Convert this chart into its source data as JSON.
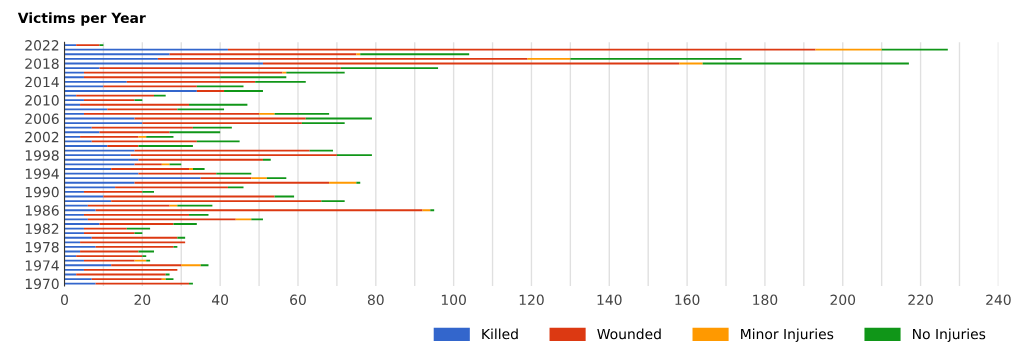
{
  "chart_data": {
    "type": "bar",
    "orientation": "horizontal",
    "stacked": true,
    "title": "Victims per Year",
    "categories": [
      "2022",
      null,
      null,
      null,
      "2018",
      null,
      null,
      null,
      "2014",
      null,
      null,
      null,
      "2010",
      null,
      null,
      null,
      "2006",
      null,
      null,
      null,
      "2002",
      null,
      null,
      null,
      "1998",
      null,
      null,
      null,
      "1994",
      null,
      null,
      null,
      "1990",
      null,
      null,
      null,
      "1986",
      null,
      null,
      null,
      "1982",
      null,
      null,
      null,
      "1978",
      null,
      null,
      null,
      "1974",
      null,
      null,
      null,
      "1970"
    ],
    "series": [
      {
        "name": "Killed",
        "color": "#3366cc",
        "values": [
          3,
          42,
          27,
          24,
          51,
          9,
          5,
          5,
          16,
          10,
          34,
          3,
          5,
          4,
          11,
          5,
          18,
          20,
          7,
          9,
          4,
          7,
          11,
          18,
          17,
          19,
          18,
          12,
          19,
          35,
          18,
          13,
          5,
          10,
          12,
          6,
          8,
          5,
          6,
          9,
          5,
          5,
          7,
          4,
          8,
          4,
          3,
          5,
          12,
          5,
          3,
          7,
          8
        ]
      },
      {
        "name": "Wounded",
        "color": "#dc3912",
        "values": [
          6,
          151,
          48,
          95,
          107,
          62,
          51,
          35,
          33,
          24,
          7,
          20,
          13,
          28,
          18,
          45,
          44,
          41,
          26,
          18,
          15,
          27,
          8,
          45,
          53,
          32,
          7,
          20,
          20,
          13,
          50,
          29,
          15,
          44,
          54,
          21,
          84,
          27,
          38,
          19,
          11,
          13,
          22,
          27,
          20,
          15,
          17,
          13,
          18,
          24,
          23,
          18,
          24
        ]
      },
      {
        "name": "Minor Injuries",
        "color": "#ff9900",
        "values": [
          0,
          17,
          1,
          11,
          6,
          0,
          1,
          0,
          0,
          0,
          0,
          0,
          0,
          0,
          0,
          4,
          0,
          0,
          0,
          0,
          2,
          0,
          0,
          0,
          0,
          0,
          2,
          1,
          0,
          4,
          7,
          0,
          0,
          0,
          0,
          2,
          2,
          0,
          4,
          0,
          0,
          0,
          0,
          0,
          0,
          0,
          0,
          3,
          5,
          0,
          0,
          1,
          0
        ]
      },
      {
        "name": "No Injuries",
        "color": "#109618",
        "values": [
          1,
          17,
          28,
          44,
          53,
          25,
          15,
          17,
          13,
          12,
          10,
          3,
          2,
          15,
          12,
          14,
          17,
          11,
          10,
          13,
          7,
          11,
          14,
          6,
          9,
          2,
          3,
          3,
          9,
          5,
          1,
          4,
          3,
          5,
          6,
          9,
          1,
          5,
          3,
          6,
          6,
          2,
          2,
          0,
          1,
          4,
          1,
          1,
          2,
          0,
          1,
          2,
          1
        ]
      }
    ],
    "xlim": [
      0,
      240
    ],
    "xticks": [
      0,
      {
        "value": 10,
        "label": null
      },
      20,
      {
        "value": 30,
        "label": null
      },
      40,
      {
        "value": 50,
        "label": null
      },
      60,
      {
        "value": 70,
        "label": null
      },
      80,
      {
        "value": 90,
        "label": null
      },
      100,
      {
        "value": 110,
        "label": null
      },
      120,
      {
        "value": 130,
        "label": null
      },
      140,
      {
        "value": 150,
        "label": null
      },
      160,
      {
        "value": 170,
        "label": null
      },
      180,
      {
        "value": 190,
        "label": null
      },
      200,
      {
        "value": 210,
        "label": null
      },
      220,
      {
        "value": 230,
        "label": null
      },
      240
    ],
    "grid": "x",
    "legend": "bottom right"
  }
}
